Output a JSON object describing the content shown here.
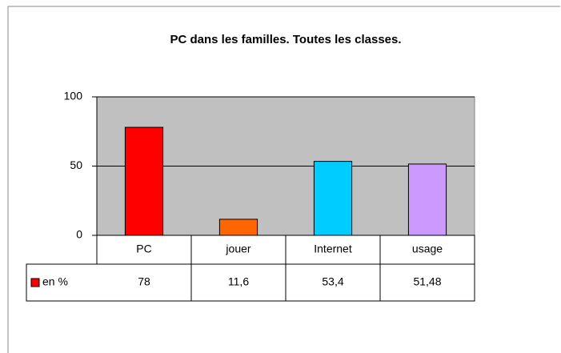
{
  "chart_data": {
    "type": "bar",
    "title": "PC dans les familles. Toutes les classes.",
    "categories": [
      "PC",
      "jouer",
      "Internet",
      "usage"
    ],
    "series": [
      {
        "name": "en %",
        "color": "#ff0000",
        "colors": [
          "#ff0000",
          "#ff6600",
          "#00ccff",
          "#cc99ff"
        ],
        "values": [
          78,
          11.6,
          53.4,
          51.48
        ],
        "value_labels": [
          "78",
          "11,6",
          "53,4",
          "51,48"
        ]
      }
    ],
    "ylim": [
      0,
      100
    ],
    "yticks": [
      0,
      50,
      100
    ],
    "grid": true
  }
}
